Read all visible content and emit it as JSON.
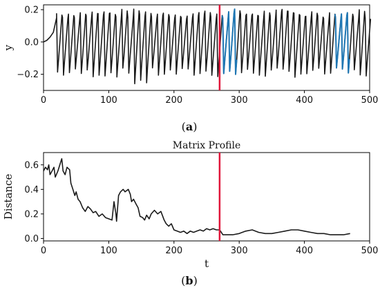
{
  "chart_data": [
    {
      "type": "line",
      "panel_label": "a",
      "title": "",
      "xlabel": "",
      "ylabel": "y",
      "xlim": [
        0,
        500
      ],
      "ylim": [
        -0.3,
        0.23
      ],
      "xticks": [
        0,
        100,
        200,
        300,
        400,
        500
      ],
      "yticks": [
        -0.2,
        0.0,
        0.2
      ],
      "ytick_labels": [
        "−0.2",
        "0.0",
        "0.2"
      ],
      "grid": false,
      "legend": "none",
      "series": [
        {
          "color": "#1a1a1a",
          "description_of_shape": "quasi-periodic oscillation, period ~9, between about -0.2 and 0.2; starts near 0 with ramp up for first ~20 samples",
          "x": [
            0,
            5,
            10,
            15,
            20,
            25
          ],
          "y": [
            0.0,
            0.01,
            0.03,
            0.06,
            0.15,
            -0.23
          ]
        }
      ],
      "oscillation": {
        "start_x": 20,
        "end_x": 500,
        "period": 9.1,
        "high": 0.17,
        "low": -0.19
      },
      "highlight_segments": [
        {
          "x_start": 271,
          "x_end": 300,
          "color": "#1f77b4"
        },
        {
          "x_start": 446,
          "x_end": 470,
          "color": "#1f77b4"
        }
      ],
      "vline": {
        "x": 270,
        "color": "#e0163a"
      }
    },
    {
      "type": "line",
      "panel_label": "b",
      "title": "Matrix Profile",
      "xlabel": "t",
      "ylabel": "Distance",
      "xlim": [
        0,
        500
      ],
      "ylim": [
        -0.02,
        0.7
      ],
      "xticks": [
        0,
        100,
        200,
        300,
        400,
        500
      ],
      "yticks": [
        0.0,
        0.2,
        0.4,
        0.6
      ],
      "ytick_labels": [
        "0.0",
        "0.2",
        "0.4",
        "0.6"
      ],
      "grid": false,
      "legend": "none",
      "series": [
        {
          "color": "#1a1a1a",
          "x": [
            0,
            3,
            6,
            8,
            10,
            13,
            16,
            18,
            22,
            25,
            28,
            30,
            33,
            36,
            40,
            42,
            45,
            48,
            50,
            53,
            56,
            60,
            64,
            68,
            72,
            76,
            80,
            85,
            90,
            95,
            100,
            105,
            108,
            111,
            112,
            115,
            118,
            122,
            125,
            130,
            133,
            135,
            138,
            142,
            145,
            148,
            152,
            155,
            158,
            162,
            165,
            170,
            175,
            180,
            185,
            188,
            192,
            196,
            200,
            205,
            210,
            215,
            220,
            225,
            230,
            235,
            240,
            245,
            250,
            255,
            260,
            265,
            270,
            275,
            280,
            290,
            300,
            310,
            320,
            330,
            340,
            350,
            360,
            370,
            380,
            390,
            400,
            410,
            420,
            430,
            440,
            450,
            460,
            470
          ],
          "y": [
            0.55,
            0.58,
            0.56,
            0.6,
            0.52,
            0.55,
            0.58,
            0.5,
            0.55,
            0.6,
            0.65,
            0.55,
            0.52,
            0.58,
            0.56,
            0.45,
            0.4,
            0.35,
            0.38,
            0.32,
            0.3,
            0.25,
            0.22,
            0.26,
            0.24,
            0.21,
            0.22,
            0.18,
            0.2,
            0.17,
            0.16,
            0.15,
            0.3,
            0.2,
            0.14,
            0.35,
            0.38,
            0.4,
            0.38,
            0.4,
            0.36,
            0.3,
            0.32,
            0.28,
            0.25,
            0.18,
            0.17,
            0.15,
            0.19,
            0.16,
            0.2,
            0.23,
            0.2,
            0.22,
            0.15,
            0.12,
            0.1,
            0.12,
            0.07,
            0.06,
            0.05,
            0.06,
            0.04,
            0.06,
            0.05,
            0.06,
            0.07,
            0.06,
            0.08,
            0.07,
            0.08,
            0.07,
            0.07,
            0.03,
            0.03,
            0.03,
            0.04,
            0.06,
            0.07,
            0.05,
            0.04,
            0.04,
            0.05,
            0.06,
            0.07,
            0.07,
            0.06,
            0.05,
            0.04,
            0.04,
            0.03,
            0.03,
            0.03,
            0.04
          ]
        }
      ],
      "vline": {
        "x": 270,
        "color": "#e0163a"
      }
    }
  ]
}
